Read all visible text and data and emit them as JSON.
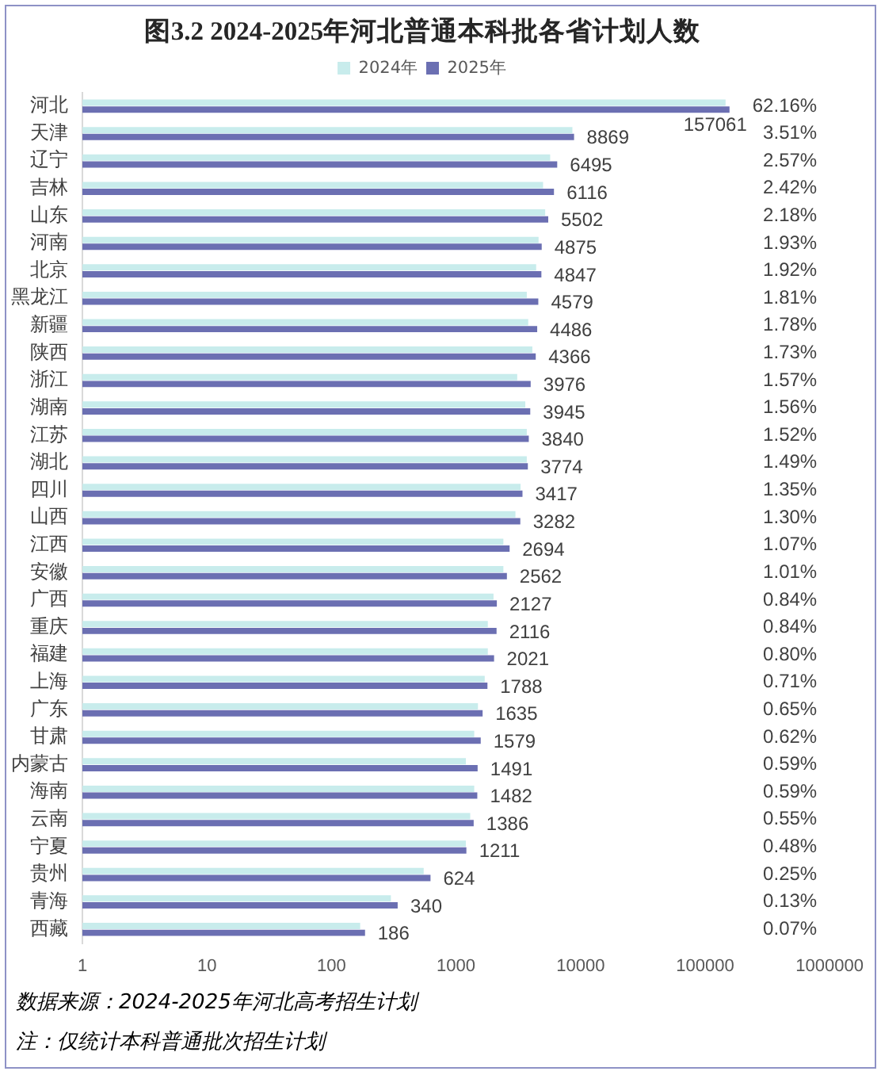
{
  "chart_data": {
    "type": "bar",
    "title": "图3.2 2024-2025年河北普通本科批各省计划人数",
    "orientation": "horizontal",
    "log": "x",
    "legend": "top",
    "categories": [
      "河北",
      "天津",
      "辽宁",
      "吉林",
      "山东",
      "河南",
      "北京",
      "黑龙江",
      "新疆",
      "陕西",
      "浙江",
      "湖南",
      "江苏",
      "湖北",
      "四川",
      "山西",
      "江西",
      "安徽",
      "广西",
      "重庆",
      "福建",
      "上海",
      "广东",
      "甘肃",
      "内蒙古",
      "海南",
      "云南",
      "宁夏",
      "贵州",
      "青海",
      "西藏"
    ],
    "series": [
      {
        "name": "2024年",
        "color": "#c8ecec",
        "values": [
          146000,
          8600,
          5700,
          5000,
          5200,
          4600,
          4400,
          3700,
          3800,
          4100,
          3100,
          3600,
          3700,
          3700,
          3300,
          3000,
          2400,
          2400,
          2000,
          1800,
          1800,
          1700,
          1500,
          1400,
          1200,
          1400,
          1300,
          1200,
          550,
          300,
          170
        ]
      },
      {
        "name": "2025年",
        "color": "#6b6fb2",
        "values": [
          157061,
          8869,
          6495,
          6116,
          5502,
          4875,
          4847,
          4579,
          4486,
          4366,
          3976,
          3945,
          3840,
          3774,
          3417,
          3282,
          2694,
          2562,
          2127,
          2116,
          2021,
          1788,
          1635,
          1579,
          1491,
          1482,
          1386,
          1211,
          624,
          340,
          186
        ],
        "value_labels": [
          "157061",
          "8869",
          "6495",
          "6116",
          "5502",
          "4875",
          "4847",
          "4579",
          "4486",
          "4366",
          "3976",
          "3945",
          "3840",
          "3774",
          "3417",
          "3282",
          "2694",
          "2562",
          "2127",
          "2116",
          "2021",
          "1788",
          "1635",
          "1579",
          "1491",
          "1482",
          "1386",
          "1211",
          "624",
          "340",
          "186"
        ]
      }
    ],
    "xlim": [
      1,
      1000000
    ],
    "xticks": [
      1,
      10,
      100,
      1000,
      10000,
      100000,
      1000000
    ],
    "annotations": [
      "62.16%",
      "3.51%",
      "2.57%",
      "2.42%",
      "2.18%",
      "1.93%",
      "1.92%",
      "1.81%",
      "1.78%",
      "1.73%",
      "1.57%",
      "1.56%",
      "1.52%",
      "1.49%",
      "1.35%",
      "1.30%",
      "1.07%",
      "1.01%",
      "0.84%",
      "0.84%",
      "0.80%",
      "0.71%",
      "0.65%",
      "0.62%",
      "0.59%",
      "0.59%",
      "0.55%",
      "0.48%",
      "0.25%",
      "0.13%",
      "0.07%",
      "数据来源：2024-2025年河北高考招生计划",
      "注：仅统计本科普通批次招生计划"
    ]
  }
}
